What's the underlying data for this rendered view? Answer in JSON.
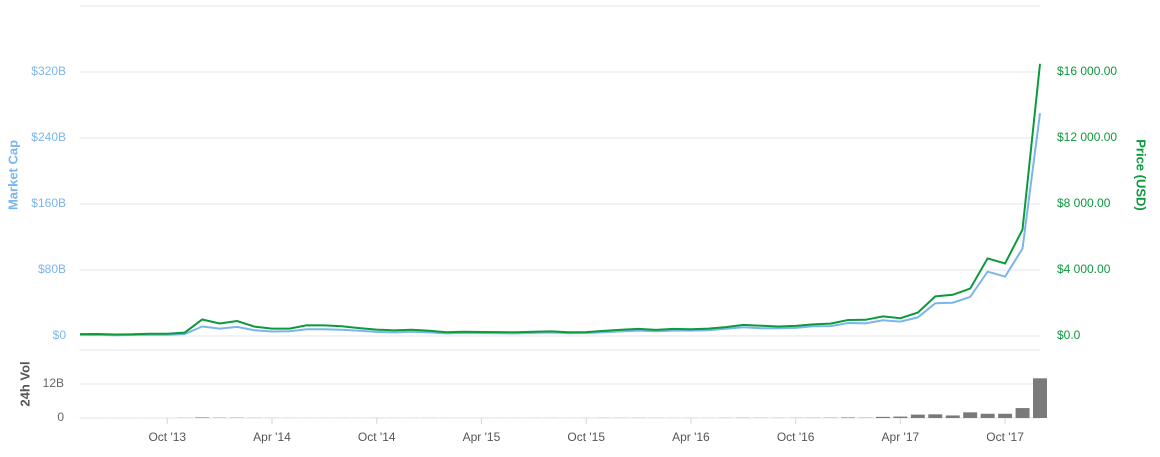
{
  "chart_data": [
    {
      "type": "line",
      "ylabel": "Market Cap",
      "y2label": "Price (USD)",
      "x": [
        "2013-05",
        "2013-06",
        "2013-07",
        "2013-08",
        "2013-09",
        "2013-10",
        "2013-11",
        "2013-12",
        "2014-01",
        "2014-02",
        "2014-03",
        "2014-04",
        "2014-05",
        "2014-06",
        "2014-07",
        "2014-08",
        "2014-09",
        "2014-10",
        "2014-11",
        "2014-12",
        "2015-01",
        "2015-02",
        "2015-03",
        "2015-04",
        "2015-05",
        "2015-06",
        "2015-07",
        "2015-08",
        "2015-09",
        "2015-10",
        "2015-11",
        "2015-12",
        "2016-01",
        "2016-02",
        "2016-03",
        "2016-04",
        "2016-05",
        "2016-06",
        "2016-07",
        "2016-08",
        "2016-09",
        "2016-10",
        "2016-11",
        "2016-12",
        "2017-01",
        "2017-02",
        "2017-03",
        "2017-04",
        "2017-05",
        "2017-06",
        "2017-07",
        "2017-08",
        "2017-09",
        "2017-10",
        "2017-11",
        "2017-12"
      ],
      "xlim": [
        "2013-05",
        "2017-12"
      ],
      "series": [
        {
          "name": "Market Cap",
          "color": "#7cb5ec",
          "values": [
            1.3,
            1.4,
            1.0,
            1.2,
            1.6,
            1.6,
            2.4,
            11.5,
            9,
            11,
            7,
            5.5,
            5.7,
            8.2,
            8.1,
            7.6,
            6.4,
            5,
            4.4,
            5.2,
            4.4,
            3.1,
            3.6,
            3.5,
            3.3,
            3.1,
            3.8,
            4.2,
            3.4,
            3.6,
            4.6,
            5.6,
            6.5,
            5.8,
            6.6,
            6.5,
            7,
            8.7,
            10.5,
            9.3,
            9.4,
            9.8,
            11.7,
            12,
            15.8,
            15.3,
            19,
            17.4,
            22.5,
            39.6,
            40.4,
            47.4,
            78,
            72,
            106,
            270
          ]
        },
        {
          "name": "Price (USD)",
          "color": "#0b9a3c",
          "axis": "y2",
          "values": [
            117,
            122,
            88,
            106,
            140,
            132,
            206,
            1000,
            760,
            910,
            570,
            450,
            450,
            650,
            640,
            590,
            480,
            385,
            338,
            378,
            315,
            225,
            260,
            245,
            235,
            225,
            260,
            280,
            230,
            238,
            310,
            378,
            430,
            370,
            430,
            415,
            450,
            540,
            670,
            625,
            575,
            610,
            700,
            750,
            970,
            980,
            1190,
            1080,
            1420,
            2400,
            2500,
            2870,
            4700,
            4400,
            6450,
            16500
          ]
        }
      ],
      "ylim": [
        0,
        400
      ],
      "yticks": [
        {
          "value": 0,
          "label": "$0"
        },
        {
          "value": 80,
          "label": "$80B"
        },
        {
          "value": 160,
          "label": "$160B"
        },
        {
          "value": 240,
          "label": "$240B"
        },
        {
          "value": 320,
          "label": "$320B"
        }
      ],
      "y2lim": [
        0,
        20000
      ],
      "y2ticks": [
        {
          "value": 0,
          "label": "$0.0"
        },
        {
          "value": 4000,
          "label": "$4 000.00"
        },
        {
          "value": 8000,
          "label": "$8 000.00"
        },
        {
          "value": 12000,
          "label": "$12 000.00"
        },
        {
          "value": 16000,
          "label": "$16 000.00"
        }
      ],
      "grid": true
    },
    {
      "type": "bar",
      "ylabel": "24h Vol",
      "x": [
        "2013-05",
        "2013-06",
        "2013-07",
        "2013-08",
        "2013-09",
        "2013-10",
        "2013-11",
        "2013-12",
        "2014-01",
        "2014-02",
        "2014-03",
        "2014-04",
        "2014-05",
        "2014-06",
        "2014-07",
        "2014-08",
        "2014-09",
        "2014-10",
        "2014-11",
        "2014-12",
        "2015-01",
        "2015-02",
        "2015-03",
        "2015-04",
        "2015-05",
        "2015-06",
        "2015-07",
        "2015-08",
        "2015-09",
        "2015-10",
        "2015-11",
        "2015-12",
        "2016-01",
        "2016-02",
        "2016-03",
        "2016-04",
        "2016-05",
        "2016-06",
        "2016-07",
        "2016-08",
        "2016-09",
        "2016-10",
        "2016-11",
        "2016-12",
        "2017-01",
        "2017-02",
        "2017-03",
        "2017-04",
        "2017-05",
        "2017-06",
        "2017-07",
        "2017-08",
        "2017-09",
        "2017-10",
        "2017-11",
        "2017-12"
      ],
      "xlim": [
        "2013-05",
        "2017-12"
      ],
      "color": "#7a7a7a",
      "values": [
        0.01,
        0.01,
        0.01,
        0.01,
        0.01,
        0.01,
        0.05,
        0.2,
        0.1,
        0.1,
        0.05,
        0.04,
        0.03,
        0.02,
        0.02,
        0.02,
        0.02,
        0.03,
        0.02,
        0.02,
        0.03,
        0.02,
        0.02,
        0.02,
        0.02,
        0.02,
        0.02,
        0.03,
        0.02,
        0.02,
        0.05,
        0.04,
        0.05,
        0.04,
        0.03,
        0.03,
        0.03,
        0.05,
        0.08,
        0.06,
        0.05,
        0.06,
        0.08,
        0.1,
        0.2,
        0.1,
        0.4,
        0.5,
        1.2,
        1.3,
        0.9,
        2.0,
        1.5,
        1.5,
        3.5,
        14
      ],
      "ylim": [
        0,
        24
      ],
      "yticks": [
        0,
        {
          "value": 12,
          "label": "12B"
        }
      ],
      "xticks": [
        {
          "value": "2013-10",
          "label": "Oct '13"
        },
        {
          "value": "2014-04",
          "label": "Apr '14"
        },
        {
          "value": "2014-10",
          "label": "Oct '14"
        },
        {
          "value": "2015-04",
          "label": "Apr '15"
        },
        {
          "value": "2015-10",
          "label": "Oct '15"
        },
        {
          "value": "2016-04",
          "label": "Apr '16"
        },
        {
          "value": "2016-10",
          "label": "Oct '16"
        },
        {
          "value": "2017-04",
          "label": "Apr '17"
        },
        {
          "value": "2017-10",
          "label": "Oct '17"
        }
      ],
      "grid": true
    }
  ]
}
